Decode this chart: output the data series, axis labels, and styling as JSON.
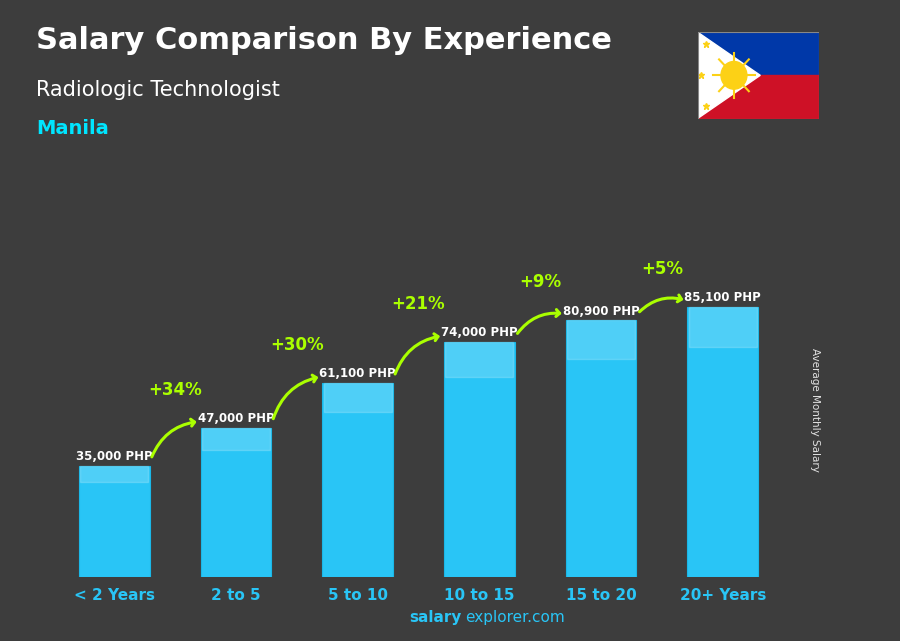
{
  "title_line1": "Salary Comparison By Experience",
  "title_line2": "Radiologic Technologist",
  "title_line3": "Manila",
  "categories": [
    "< 2 Years",
    "2 to 5",
    "5 to 10",
    "10 to 15",
    "15 to 20",
    "20+ Years"
  ],
  "values": [
    35000,
    47000,
    61100,
    74000,
    80900,
    85100
  ],
  "value_labels": [
    "35,000 PHP",
    "47,000 PHP",
    "61,100 PHP",
    "74,000 PHP",
    "80,900 PHP",
    "85,100 PHP"
  ],
  "pct_labels": [
    "+34%",
    "+30%",
    "+21%",
    "+9%",
    "+5%"
  ],
  "bar_color": "#29c5f6",
  "bar_edge_color": "#1ab8e8",
  "title_color": "#ffffff",
  "manila_color": "#00e5ff",
  "pct_color": "#aaff00",
  "value_label_color": "#ffffff",
  "xlabel_color": "#29c5f6",
  "bg_color": "#3d3d3d",
  "watermark_bold": "salary",
  "watermark_normal": "explorer.com",
  "ylabel_text": "Average Monthly Salary",
  "ylim": [
    0,
    105000
  ]
}
